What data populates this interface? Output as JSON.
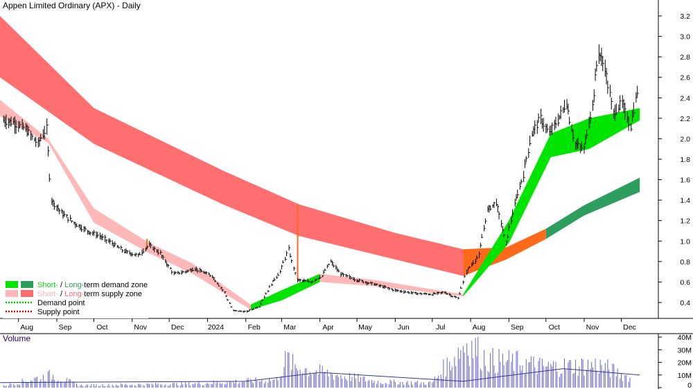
{
  "chart_data": {
    "type": "line",
    "title": "Appen Limited Ordinary (APX) - Daily",
    "price_axis": {
      "ticks": [
        "0.4",
        "0.6",
        "0.8",
        "1.0",
        "1.2",
        "1.4",
        "1.6",
        "1.8",
        "2.0",
        "2.2",
        "2.4",
        "2.6",
        "2.8",
        "3.0",
        "3.2"
      ],
      "ylim": [
        0.22,
        3.35
      ]
    },
    "x_axis": {
      "labels": [
        "Aug",
        "Sep",
        "Oct",
        "Nov",
        "Dec",
        "2024",
        "Feb",
        "Mar",
        "Apr",
        "May",
        "Jun",
        "Jul",
        "Aug",
        "Sep",
        "Oct",
        "Nov",
        "Dec"
      ],
      "range": [
        "2023-07-17",
        "2024-12-17"
      ]
    },
    "price_series": [
      {
        "date": "2023-07-20",
        "close": 2.18
      },
      {
        "date": "2023-07-28",
        "close": 2.16
      },
      {
        "date": "2023-08-07",
        "close": 2.1
      },
      {
        "date": "2023-08-17",
        "close": 1.95
      },
      {
        "date": "2023-08-24",
        "close": 2.1
      },
      {
        "date": "2023-08-28",
        "close": 1.4
      },
      {
        "date": "2023-09-05",
        "close": 1.28
      },
      {
        "date": "2023-09-15",
        "close": 1.18
      },
      {
        "date": "2023-09-26",
        "close": 1.1
      },
      {
        "date": "2023-10-06",
        "close": 1.05
      },
      {
        "date": "2023-10-16",
        "close": 0.98
      },
      {
        "date": "2023-10-26",
        "close": 0.9
      },
      {
        "date": "2023-11-06",
        "close": 0.86
      },
      {
        "date": "2023-11-15",
        "close": 0.96
      },
      {
        "date": "2023-11-24",
        "close": 0.88
      },
      {
        "date": "2023-12-05",
        "close": 0.68
      },
      {
        "date": "2023-12-14",
        "close": 0.7
      },
      {
        "date": "2023-12-22",
        "close": 0.73
      },
      {
        "date": "2024-01-05",
        "close": 0.66
      },
      {
        "date": "2024-01-15",
        "close": 0.5
      },
      {
        "date": "2024-01-22",
        "close": 0.32
      },
      {
        "date": "2024-02-02",
        "close": 0.31
      },
      {
        "date": "2024-02-12",
        "close": 0.36
      },
      {
        "date": "2024-02-22",
        "close": 0.58
      },
      {
        "date": "2024-02-29",
        "close": 0.7
      },
      {
        "date": "2024-03-07",
        "close": 0.92
      },
      {
        "date": "2024-03-14",
        "close": 0.62
      },
      {
        "date": "2024-03-25",
        "close": 0.6
      },
      {
        "date": "2024-04-03",
        "close": 0.66
      },
      {
        "date": "2024-04-10",
        "close": 0.8
      },
      {
        "date": "2024-04-18",
        "close": 0.68
      },
      {
        "date": "2024-05-01",
        "close": 0.62
      },
      {
        "date": "2024-05-15",
        "close": 0.58
      },
      {
        "date": "2024-06-01",
        "close": 0.52
      },
      {
        "date": "2024-06-17",
        "close": 0.49
      },
      {
        "date": "2024-07-01",
        "close": 0.48
      },
      {
        "date": "2024-07-11",
        "close": 0.5
      },
      {
        "date": "2024-07-22",
        "close": 0.44
      },
      {
        "date": "2024-07-29",
        "close": 0.7
      },
      {
        "date": "2024-08-08",
        "close": 0.86
      },
      {
        "date": "2024-08-15",
        "close": 1.3
      },
      {
        "date": "2024-08-22",
        "close": 1.38
      },
      {
        "date": "2024-08-30",
        "close": 0.98
      },
      {
        "date": "2024-09-06",
        "close": 1.35
      },
      {
        "date": "2024-09-13",
        "close": 1.65
      },
      {
        "date": "2024-09-20",
        "close": 2.05
      },
      {
        "date": "2024-09-27",
        "close": 2.2
      },
      {
        "date": "2024-10-04",
        "close": 2.05
      },
      {
        "date": "2024-10-11",
        "close": 2.18
      },
      {
        "date": "2024-10-18",
        "close": 2.35
      },
      {
        "date": "2024-10-25",
        "close": 1.95
      },
      {
        "date": "2024-11-01",
        "close": 1.9
      },
      {
        "date": "2024-11-08",
        "close": 2.32
      },
      {
        "date": "2024-11-13",
        "close": 2.85
      },
      {
        "date": "2024-11-18",
        "close": 2.7
      },
      {
        "date": "2024-11-25",
        "close": 2.25
      },
      {
        "date": "2024-12-02",
        "close": 2.35
      },
      {
        "date": "2024-12-09",
        "close": 2.12
      },
      {
        "date": "2024-12-16",
        "close": 2.55
      }
    ],
    "long_term_zone": [
      {
        "date": "2023-07-17",
        "upper": 3.2,
        "lower": 2.6
      },
      {
        "date": "2023-10-01",
        "upper": 2.3,
        "lower": 1.95
      },
      {
        "date": "2024-01-15",
        "upper": 1.68,
        "lower": 1.35
      },
      {
        "date": "2024-03-15",
        "upper": 1.36,
        "lower": 1.05
      },
      {
        "date": "2024-06-01",
        "upper": 1.08,
        "lower": 0.82
      },
      {
        "date": "2024-07-26",
        "upper": 0.92,
        "lower": 0.66
      },
      {
        "date": "2024-08-30",
        "upper": 0.94,
        "lower": 0.82
      },
      {
        "date": "2024-10-01",
        "upper": 1.12,
        "lower": 1.02
      },
      {
        "date": "2024-11-01",
        "upper": 1.35,
        "lower": 1.25
      },
      {
        "date": "2024-12-16",
        "upper": 1.62,
        "lower": 1.48
      }
    ],
    "short_term_zone": [
      {
        "date": "2023-07-17",
        "upper": 2.38,
        "lower": 2.22
      },
      {
        "date": "2023-08-25",
        "upper": 2.0,
        "lower": 1.96
      },
      {
        "date": "2023-10-01",
        "upper": 1.32,
        "lower": 1.18
      },
      {
        "date": "2023-11-15",
        "upper": 0.98,
        "lower": 0.88
      },
      {
        "date": "2023-12-20",
        "upper": 0.78,
        "lower": 0.68
      },
      {
        "date": "2024-02-05",
        "upper": 0.38,
        "lower": 0.33
      },
      {
        "date": "2024-03-01",
        "upper": 0.52,
        "lower": 0.42
      },
      {
        "date": "2024-04-01",
        "upper": 0.68,
        "lower": 0.6
      },
      {
        "date": "2024-05-15",
        "upper": 0.62,
        "lower": 0.56
      },
      {
        "date": "2024-07-26",
        "upper": 0.48,
        "lower": 0.46
      },
      {
        "date": "2024-09-01",
        "upper": 1.2,
        "lower": 0.98
      },
      {
        "date": "2024-10-05",
        "upper": 2.05,
        "lower": 1.82
      },
      {
        "date": "2024-11-05",
        "upper": 2.2,
        "lower": 1.9
      },
      {
        "date": "2024-12-16",
        "upper": 2.3,
        "lower": 2.18
      }
    ],
    "volume_axis": {
      "ticks": [
        "0",
        "10M",
        "20M",
        "30M",
        "40M"
      ],
      "ylim": [
        0,
        42
      ]
    },
    "volume_series": [
      {
        "date": "2023-07-20",
        "value": 1.5
      },
      {
        "date": "2023-08-28",
        "value": 11
      },
      {
        "date": "2023-09-20",
        "value": 2
      },
      {
        "date": "2023-11-20",
        "value": 3
      },
      {
        "date": "2023-12-20",
        "value": 3.5
      },
      {
        "date": "2024-01-22",
        "value": 5
      },
      {
        "date": "2024-02-26",
        "value": 7
      },
      {
        "date": "2024-03-06",
        "value": 26
      },
      {
        "date": "2024-03-12",
        "value": 18
      },
      {
        "date": "2024-04-10",
        "value": 12
      },
      {
        "date": "2024-05-20",
        "value": 5
      },
      {
        "date": "2024-07-01",
        "value": 4
      },
      {
        "date": "2024-07-29",
        "value": 40
      },
      {
        "date": "2024-08-05",
        "value": 34
      },
      {
        "date": "2024-08-15",
        "value": 24
      },
      {
        "date": "2024-09-10",
        "value": 22
      },
      {
        "date": "2024-10-01",
        "value": 18
      },
      {
        "date": "2024-11-13",
        "value": 20
      },
      {
        "date": "2024-12-10",
        "value": 8
      }
    ],
    "volume_average": [
      {
        "date": "2023-07-17",
        "value": 4
      },
      {
        "date": "2024-02-01",
        "value": 5
      },
      {
        "date": "2024-04-01",
        "value": 12
      },
      {
        "date": "2024-07-26",
        "value": 5
      },
      {
        "date": "2024-10-15",
        "value": 15
      },
      {
        "date": "2024-12-16",
        "value": 10
      }
    ],
    "legend": {
      "entries": [
        {
          "prefix": "Short-",
          "sep": " / ",
          "mid": "Long-",
          "suffix": "term demand zone",
          "colors": [
            "#00e400",
            "#2e9e5e"
          ]
        },
        {
          "prefix": "Short-",
          "sep": " / ",
          "mid": "Long-",
          "suffix": "term supply zone",
          "colors": [
            "#ffb6b6",
            "#ff6b6b"
          ]
        },
        {
          "label": "Demand point",
          "color": "#00c800"
        },
        {
          "label": "Supply point",
          "color": "#e00000"
        }
      ]
    },
    "volume_label": "Volume",
    "colors": {
      "long_supply": "#ff6f6f",
      "long_demand": "#2e9e5e",
      "short_supply": "#ffb8b8",
      "short_demand": "#00e400",
      "flip": "#ff6a1a",
      "volume_bar": "#6666cc",
      "volume_avg": "#333399"
    }
  }
}
